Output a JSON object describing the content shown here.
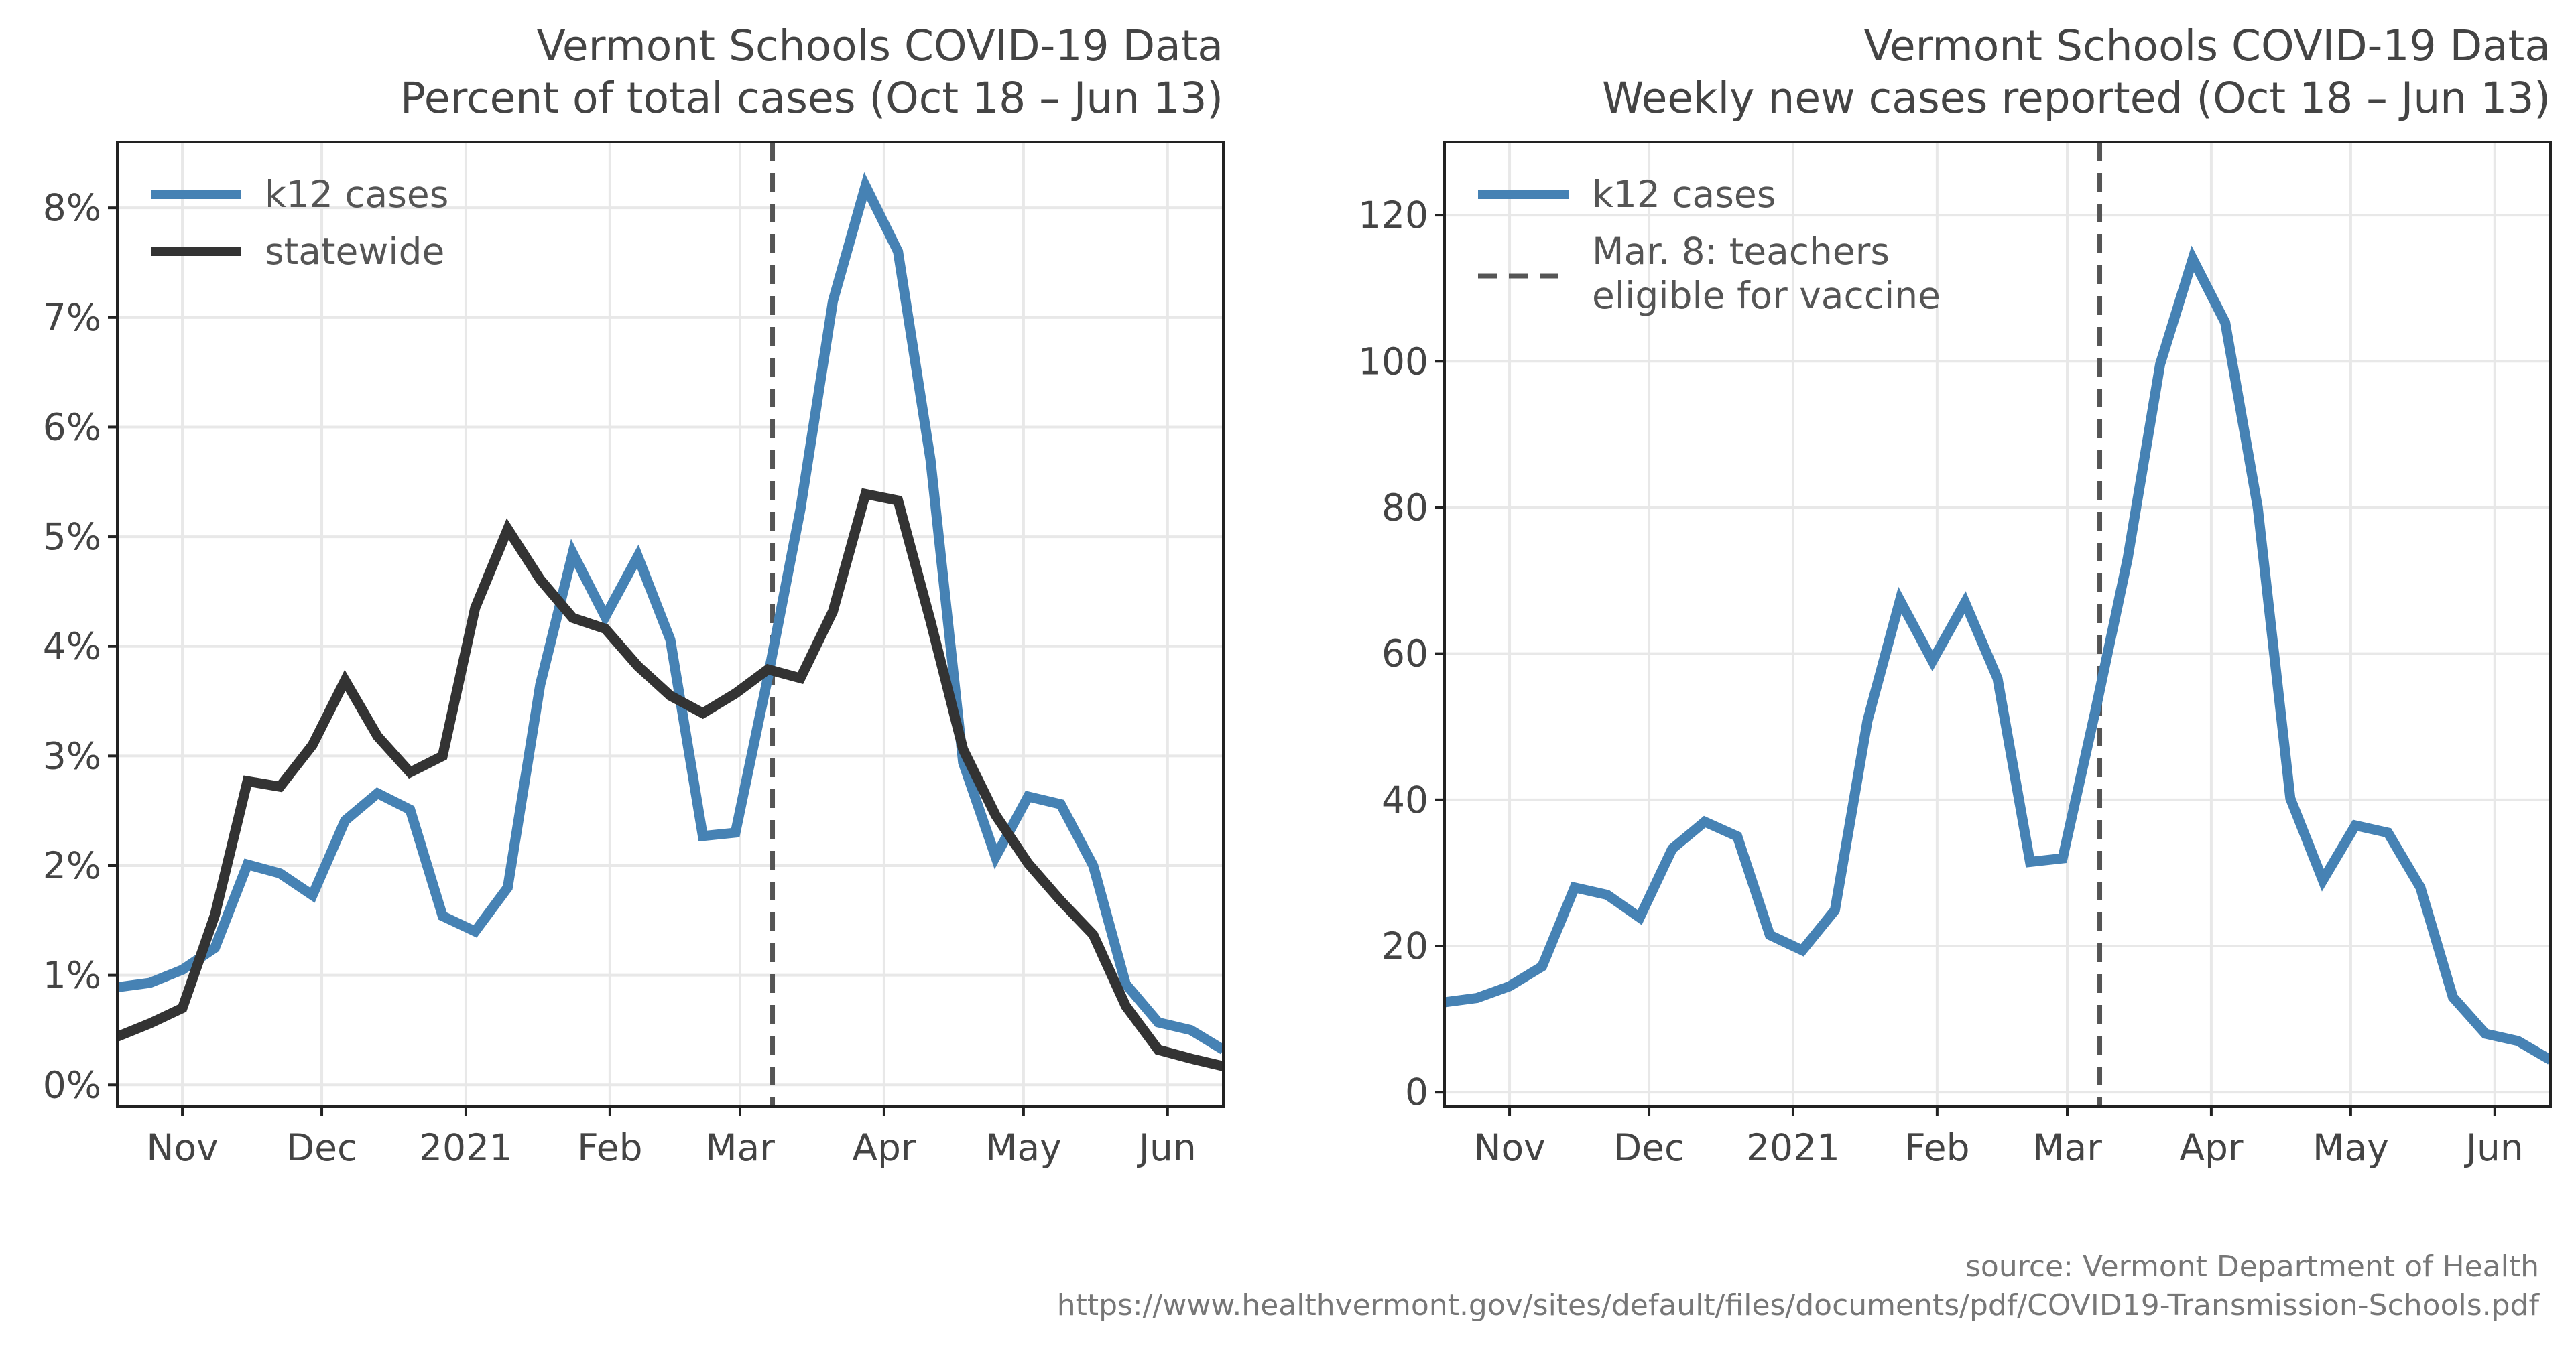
{
  "colors": {
    "k12": "#4682b4",
    "statewide": "#333333",
    "marker": "#555555",
    "grid": "#e8e8e8"
  },
  "event": {
    "date": "2021-03-08"
  },
  "chart_data": [
    {
      "type": "line",
      "title": "Vermont Schools COVID-19 Data",
      "subtitle": "Percent of total cases (Oct 18 – Jun 13)",
      "xlabel": "",
      "ylabel": "",
      "y_format": "percent",
      "xlim": [
        "2020-10-18",
        "2021-06-13"
      ],
      "ylim": [
        -0.2,
        8.6
      ],
      "y_ticks": [
        0,
        1,
        2,
        3,
        4,
        5,
        6,
        7,
        8
      ],
      "y_tick_labels": [
        "0%",
        "1%",
        "2%",
        "3%",
        "4%",
        "5%",
        "6%",
        "7%",
        "8%"
      ],
      "x_ticks": [
        "2020-11-01",
        "2020-12-01",
        "2021-01-01",
        "2021-02-01",
        "2021-03-01",
        "2021-04-01",
        "2021-05-01",
        "2021-06-01"
      ],
      "x_tick_labels": [
        "Nov",
        "Dec",
        "2021",
        "Feb",
        "Mar",
        "Apr",
        "May",
        "Jun"
      ],
      "grid": true,
      "legend": "upper-left",
      "x": [
        "2020-10-18",
        "2020-10-25",
        "2020-11-01",
        "2020-11-08",
        "2020-11-15",
        "2020-11-22",
        "2020-11-29",
        "2020-12-06",
        "2020-12-13",
        "2020-12-20",
        "2020-12-27",
        "2021-01-03",
        "2021-01-10",
        "2021-01-17",
        "2021-01-24",
        "2021-01-31",
        "2021-02-07",
        "2021-02-14",
        "2021-02-21",
        "2021-02-28",
        "2021-03-07",
        "2021-03-14",
        "2021-03-21",
        "2021-03-28",
        "2021-04-04",
        "2021-04-11",
        "2021-04-18",
        "2021-04-25",
        "2021-05-02",
        "2021-05-09",
        "2021-05-16",
        "2021-05-23",
        "2021-05-30",
        "2021-06-06",
        "2021-06-13"
      ],
      "series": [
        {
          "name": "k12 cases",
          "color": "#4682b4",
          "values": [
            0.89,
            0.93,
            1.05,
            1.25,
            2.01,
            1.93,
            1.73,
            2.41,
            2.66,
            2.51,
            1.54,
            1.4,
            1.8,
            3.65,
            4.85,
            4.27,
            4.82,
            4.06,
            2.27,
            2.3,
            3.72,
            5.25,
            7.15,
            8.2,
            7.6,
            5.7,
            2.94,
            2.08,
            2.63,
            2.56,
            2.0,
            0.92,
            0.57,
            0.5,
            0.32
          ]
        },
        {
          "name": "statewide",
          "color": "#333333",
          "values": [
            0.44,
            0.56,
            0.7,
            1.55,
            2.77,
            2.72,
            3.1,
            3.69,
            3.18,
            2.85,
            3.0,
            4.35,
            5.07,
            4.61,
            4.26,
            4.16,
            3.82,
            3.55,
            3.39,
            3.57,
            3.79,
            3.71,
            4.32,
            5.39,
            5.33,
            4.23,
            3.06,
            2.46,
            2.02,
            1.68,
            1.37,
            0.72,
            0.32,
            0.24,
            0.17
          ]
        }
      ],
      "legend_entries": [
        "k12 cases",
        "statewide"
      ]
    },
    {
      "type": "line",
      "title": "Vermont Schools COVID-19 Data",
      "subtitle": "Weekly new cases reported (Oct 18 – Jun 13)",
      "xlabel": "",
      "ylabel": "",
      "y_format": "number",
      "xlim": [
        "2020-10-18",
        "2021-06-13"
      ],
      "ylim": [
        -2,
        130
      ],
      "y_ticks": [
        0,
        20,
        40,
        60,
        80,
        100,
        120
      ],
      "y_tick_labels": [
        "0",
        "20",
        "40",
        "60",
        "80",
        "100",
        "120"
      ],
      "x_ticks": [
        "2020-11-01",
        "2020-12-01",
        "2021-01-01",
        "2021-02-01",
        "2021-03-01",
        "2021-04-01",
        "2021-05-01",
        "2021-06-01"
      ],
      "x_tick_labels": [
        "Nov",
        "Dec",
        "2021",
        "Feb",
        "Mar",
        "Apr",
        "May",
        "Jun"
      ],
      "grid": true,
      "legend": "upper-left",
      "x": [
        "2020-10-18",
        "2020-10-25",
        "2020-11-01",
        "2020-11-08",
        "2020-11-15",
        "2020-11-22",
        "2020-11-29",
        "2020-12-06",
        "2020-12-13",
        "2020-12-20",
        "2020-12-27",
        "2021-01-03",
        "2021-01-10",
        "2021-01-17",
        "2021-01-24",
        "2021-01-31",
        "2021-02-07",
        "2021-02-14",
        "2021-02-21",
        "2021-02-28",
        "2021-03-07",
        "2021-03-14",
        "2021-03-21",
        "2021-03-28",
        "2021-04-04",
        "2021-04-11",
        "2021-04-18",
        "2021-04-25",
        "2021-05-02",
        "2021-05-09",
        "2021-05-16",
        "2021-05-23",
        "2021-05-30",
        "2021-06-06",
        "2021-06-13"
      ],
      "series": [
        {
          "name": "k12 cases",
          "color": "#4682b4",
          "values": [
            12.3,
            12.9,
            14.5,
            17.2,
            28.0,
            27.0,
            23.9,
            33.3,
            37.0,
            35.0,
            21.5,
            19.4,
            24.9,
            50.8,
            67.3,
            59.0,
            67.0,
            56.6,
            31.5,
            32.0,
            52.0,
            73.0,
            99.6,
            114.0,
            105.3,
            80.0,
            40.2,
            29.0,
            36.5,
            35.5,
            28.0,
            13.0,
            8.0,
            7.0,
            4.4
          ]
        }
      ],
      "legend_entries": [
        "k12 cases",
        "Mar. 8: teachers",
        "eligible for vaccine"
      ]
    }
  ],
  "source": {
    "line1": "source: Vermont Department of Health",
    "line2": "https://www.healthvermont.gov/sites/default/files/documents/pdf/COVID19-Transmission-Schools.pdf"
  }
}
